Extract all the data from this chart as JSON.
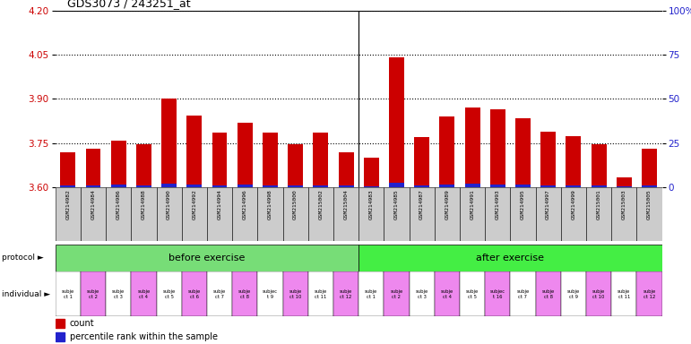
{
  "title": "GDS3073 / 243251_at",
  "samples": [
    "GSM214982",
    "GSM214984",
    "GSM214986",
    "GSM214988",
    "GSM214990",
    "GSM214992",
    "GSM214994",
    "GSM214996",
    "GSM214998",
    "GSM215000",
    "GSM215002",
    "GSM215004",
    "GSM214983",
    "GSM214985",
    "GSM214987",
    "GSM214989",
    "GSM214991",
    "GSM214993",
    "GSM214995",
    "GSM214997",
    "GSM214999",
    "GSM215001",
    "GSM215003",
    "GSM215005"
  ],
  "red_values": [
    3.72,
    3.73,
    3.76,
    3.745,
    3.9,
    3.845,
    3.785,
    3.82,
    3.785,
    3.745,
    3.785,
    3.72,
    3.7,
    4.04,
    3.77,
    3.84,
    3.87,
    3.865,
    3.835,
    3.79,
    3.775,
    3.745,
    3.635,
    3.73
  ],
  "blue_pct": [
    5,
    6,
    8,
    5,
    9,
    7,
    6,
    8,
    6,
    5,
    6,
    5,
    4,
    12,
    6,
    8,
    9,
    8,
    7,
    6,
    5,
    5,
    3,
    5
  ],
  "ymin": 3.6,
  "ymax": 4.2,
  "yticks_left": [
    3.6,
    3.75,
    3.9,
    4.05,
    4.2
  ],
  "yticks_right": [
    0,
    25,
    50,
    75,
    100
  ],
  "before_count": 12,
  "before_label": "before exercise",
  "after_label": "after exercise",
  "ind_before": [
    "subje\nct 1",
    "subje\nct 2",
    "subje\nct 3",
    "subje\nct 4",
    "subje\nct 5",
    "subje\nct 6",
    "subje\nct 7",
    "subje\nct 8",
    "subjec\nt 9",
    "subje\nct 10",
    "subje\nct 11",
    "subje\nct 12"
  ],
  "ind_after": [
    "subje\nct 1",
    "subje\nct 2",
    "subje\nct 3",
    "subje\nct 4",
    "subje\nct 5",
    "subjec\nt 16",
    "subje\nct 7",
    "subje\nct 8",
    "subje\nct 9",
    "subje\nct 10",
    "subje\nct 11",
    "subje\nct 12"
  ],
  "bar_color": "#cc0000",
  "blue_color": "#2222cc",
  "green_color": "#77dd77",
  "pink_color": "#ee88ee",
  "gray_cell": "#cccccc",
  "white_cell": "#ffffff",
  "axis_color_left": "#cc0000",
  "axis_color_right": "#2222cc"
}
